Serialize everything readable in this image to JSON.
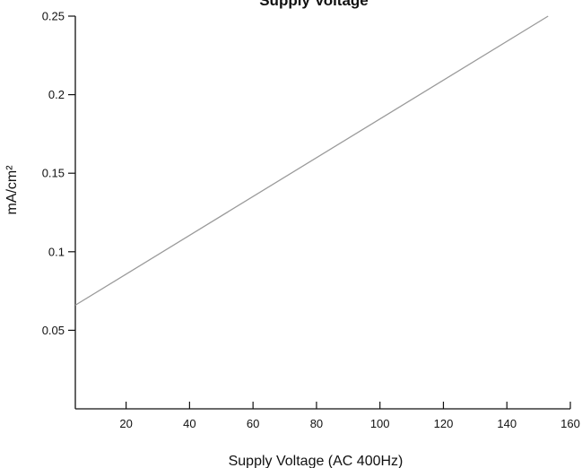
{
  "chart_data": {
    "type": "line",
    "title": "Supply Voltage",
    "xlabel": "Supply Voltage (AC 400Hz)",
    "ylabel": "mA/cm²",
    "xlim": [
      4,
      160
    ],
    "ylim": [
      0,
      0.25
    ],
    "x_ticks": [
      20,
      40,
      60,
      80,
      100,
      120,
      140,
      160
    ],
    "x_tick_labels": [
      "20",
      "40",
      "60",
      "80",
      "100",
      "120",
      "140",
      "160"
    ],
    "y_ticks": [
      0.05,
      0.1,
      0.15,
      0.2,
      0.25
    ],
    "y_tick_labels": [
      "0.05",
      "0.1",
      "0.15",
      "0.2",
      "0.25"
    ],
    "grid": false,
    "legend": "none",
    "series": [
      {
        "color": "#9a9a9a",
        "x": [
          4,
          153
        ],
        "y": [
          0.066,
          0.25
        ]
      }
    ]
  }
}
